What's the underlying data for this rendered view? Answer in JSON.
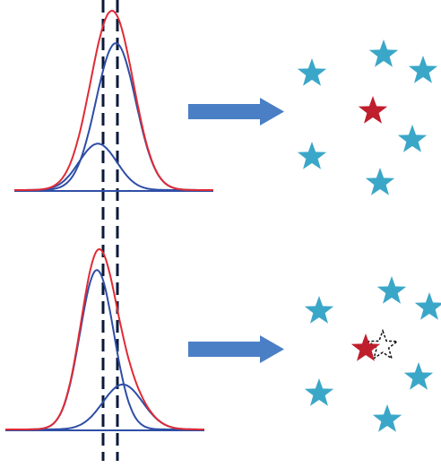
{
  "colors": {
    "mixture_curve": "#e02b35",
    "component_curve": "#2e4ea6",
    "dashed_line": "#0b1a3a",
    "arrow": "#4a7fc6",
    "star_teal": "#3ba7c8",
    "star_red": "#bf1e2d",
    "star_outline": "#111111"
  },
  "panels": [
    {
      "id": "top",
      "components": [
        {
          "mean": 0.42,
          "sd": 0.095,
          "weight": 0.24
        },
        {
          "mean": 0.51,
          "sd": 0.1,
          "weight": 0.76
        }
      ],
      "stars": {
        "teal_count": 6,
        "red_count": 1,
        "outline_count": 0
      }
    },
    {
      "id": "bottom",
      "components": [
        {
          "mean": 0.46,
          "sd": 0.085,
          "weight": 0.78
        },
        {
          "mean": 0.59,
          "sd": 0.1,
          "weight": 0.22
        }
      ],
      "stars": {
        "teal_count": 6,
        "red_count": 1,
        "outline_count": 1
      }
    }
  ]
}
